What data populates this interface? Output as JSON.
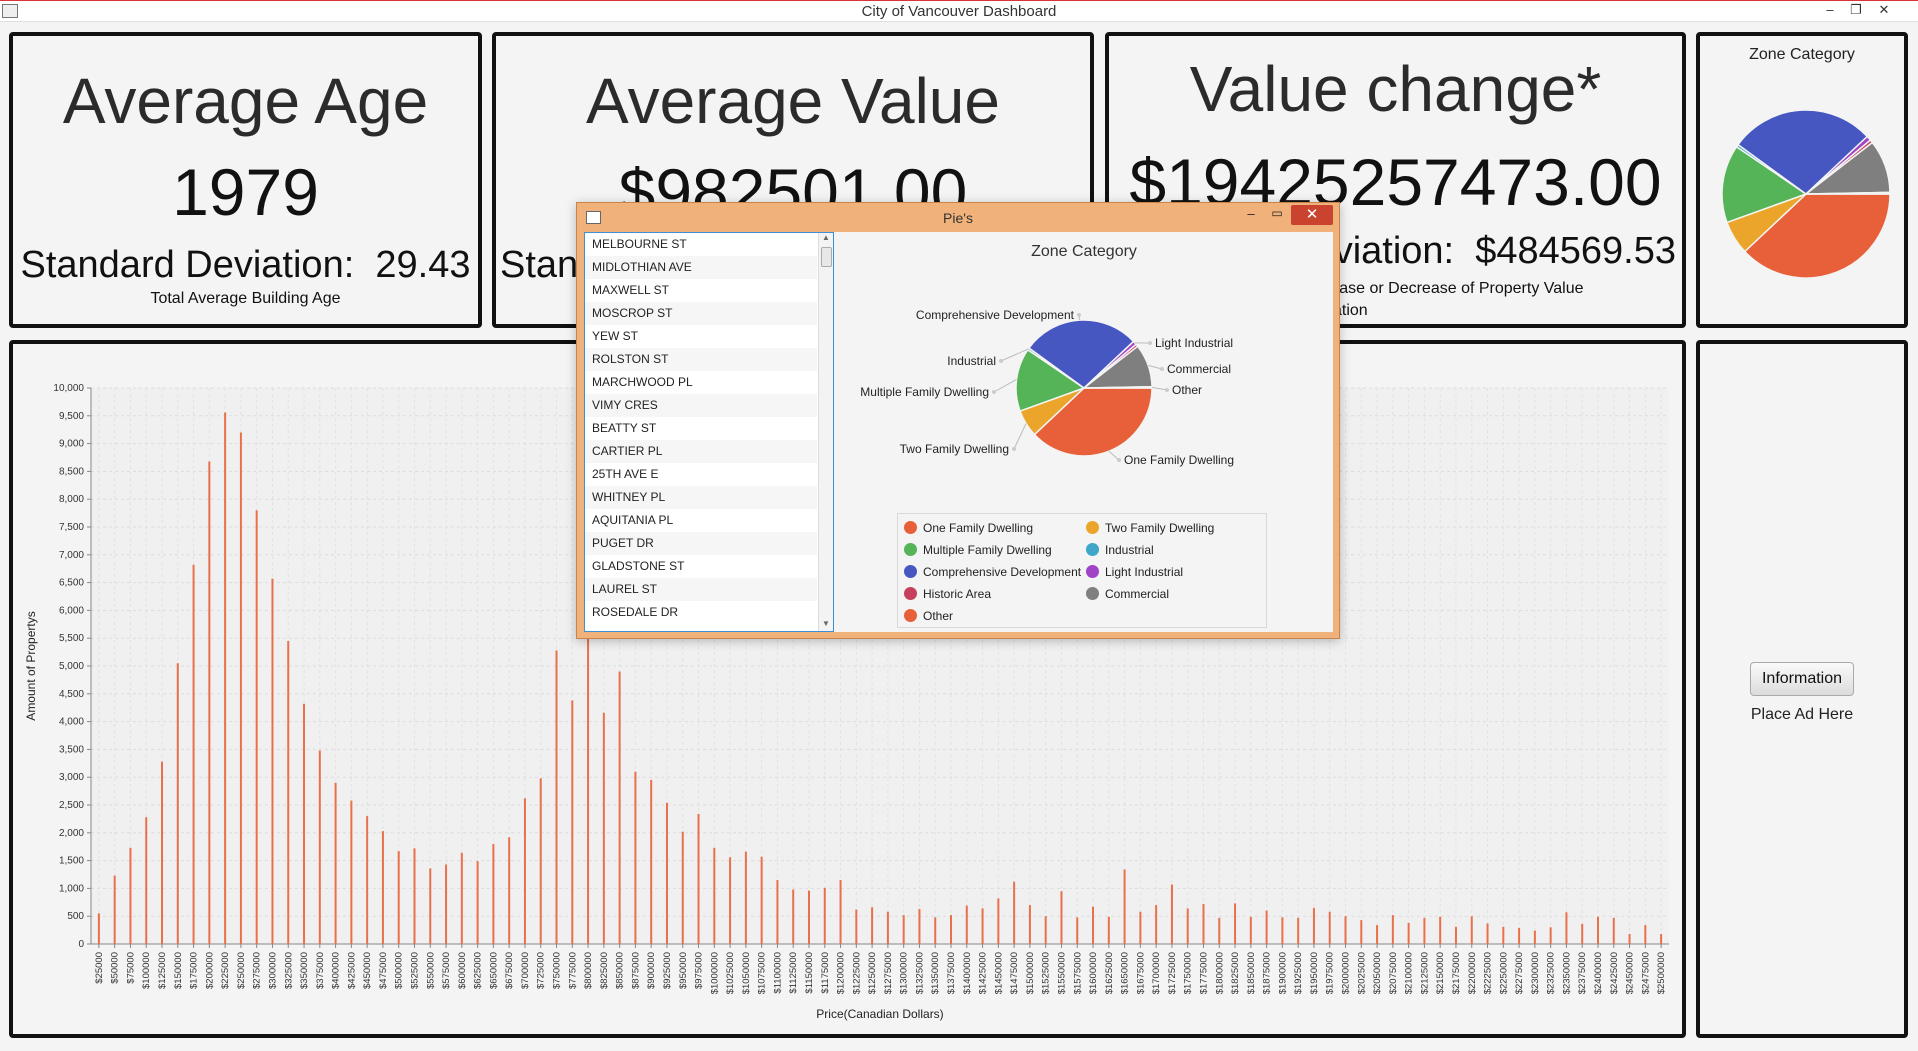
{
  "window": {
    "title": "City of Vancouver Dashboard",
    "minimize": "–",
    "maximize": "❐",
    "close": "✕"
  },
  "age_panel": {
    "title": "Average Age",
    "value": "1979",
    "std_label": "Standard Deviation:",
    "std_value": "29.43",
    "caption": "Total Average Building Age"
  },
  "value_panel": {
    "title": "Average Value",
    "value": "$982501.00",
    "std_label": "Stan"
  },
  "change_panel": {
    "title": "Value change*",
    "value": "$19425257473.00",
    "std_label": "viation:",
    "std_value": "$484569.53",
    "caption_line1": "rease or Decrease of Property Value",
    "caption_line2": "flation"
  },
  "zone_mini": {
    "title": "Zone Category"
  },
  "ad_panel": {
    "button": "Information",
    "text": "Place Ad Here"
  },
  "bar_chart": {
    "xlabel": "Price(Canadian Dollars)",
    "ylabel": "Amount of Propertys",
    "bar_color": "#e8704a"
  },
  "chart_data": [
    {
      "type": "bar",
      "title": "",
      "xlabel": "Price(Canadian Dollars)",
      "ylabel": "Amount of Propertys",
      "ylim": [
        0,
        10000
      ],
      "yticks": [
        "0",
        "500",
        "1,000",
        "1,500",
        "2,000",
        "2,500",
        "3,000",
        "3,500",
        "4,000",
        "4,500",
        "5,000",
        "5,500",
        "6,000",
        "6,500",
        "7,000",
        "7,500",
        "8,000",
        "8,500",
        "9,000",
        "9,500",
        "10,000"
      ],
      "grid": true,
      "categories": [
        "$25000",
        "$50000",
        "$75000",
        "$100000",
        "$125000",
        "$150000",
        "$175000",
        "$200000",
        "$225000",
        "$250000",
        "$275000",
        "$300000",
        "$325000",
        "$350000",
        "$375000",
        "$400000",
        "$425000",
        "$450000",
        "$475000",
        "$500000",
        "$525000",
        "$550000",
        "$575000",
        "$600000",
        "$625000",
        "$650000",
        "$675000",
        "$700000",
        "$725000",
        "$750000",
        "$775000",
        "$800000",
        "$825000",
        "$850000",
        "$875000",
        "$900000",
        "$925000",
        "$950000",
        "$975000",
        "$1000000",
        "$1025000",
        "$1050000",
        "$1075000",
        "$1100000",
        "$1125000",
        "$1150000",
        "$1175000",
        "$1200000",
        "$1225000",
        "$1250000",
        "$1275000",
        "$1300000",
        "$1325000",
        "$1350000",
        "$1375000",
        "$1400000",
        "$1425000",
        "$1450000",
        "$1475000",
        "$1500000",
        "$1525000",
        "$1550000",
        "$1575000",
        "$1600000",
        "$1625000",
        "$1650000",
        "$1675000",
        "$1700000",
        "$1725000",
        "$1750000",
        "$1775000",
        "$1800000",
        "$1825000",
        "$1850000",
        "$1875000",
        "$1900000",
        "$1925000",
        "$1950000",
        "$1975000",
        "$2000000",
        "$2025000",
        "$2050000",
        "$2075000",
        "$2100000",
        "$2125000",
        "$2150000",
        "$2175000",
        "$2200000",
        "$2225000",
        "$2250000",
        "$2275000",
        "$2300000",
        "$2325000",
        "$2350000",
        "$2375000",
        "$2400000",
        "$2425000",
        "$2450000",
        "$2475000",
        "$2500000"
      ],
      "values": [
        550,
        1230,
        1730,
        2280,
        3280,
        5050,
        6820,
        8680,
        9560,
        9200,
        7800,
        6570,
        5450,
        4320,
        3480,
        2900,
        2580,
        2300,
        2030,
        1670,
        1720,
        1360,
        1430,
        1640,
        1490,
        1800,
        1920,
        2620,
        2980,
        5280,
        4380,
        5700,
        4160,
        4900,
        3100,
        2950,
        2540,
        2020,
        2340,
        1730,
        1560,
        1660,
        1570,
        1150,
        980,
        960,
        1010,
        1150,
        620,
        660,
        580,
        520,
        630,
        480,
        520,
        690,
        640,
        820,
        1120,
        700,
        500,
        950,
        480,
        670,
        490,
        1340,
        580,
        700,
        1070,
        640,
        720,
        470,
        730,
        490,
        600,
        480,
        470,
        650,
        580,
        500,
        430,
        340,
        520,
        380,
        470,
        490,
        310,
        500,
        370,
        310,
        290,
        240,
        300,
        570,
        360,
        490,
        470,
        180,
        340,
        180
      ]
    },
    {
      "type": "pie",
      "title": "Zone Category",
      "labels": [
        "One Family Dwelling",
        "Two Family Dwelling",
        "Multiple Family Dwelling",
        "Industrial",
        "Comprehensive Development",
        "Light Industrial",
        "Historic Area",
        "Commercial",
        "Other"
      ],
      "values": [
        38.0,
        6.5,
        15.0,
        0.5,
        28.0,
        0.9,
        0.6,
        10.2,
        0.3
      ],
      "colors": [
        "#e8603a",
        "#eba52b",
        "#56b458",
        "#3da6c9",
        "#4657c1",
        "#a043c7",
        "#c63f5e",
        "#7f7f7f",
        "#e8603a"
      ],
      "legend": "bottom"
    }
  ],
  "dialog": {
    "title": "Pie's",
    "minimize": "–",
    "maximize": "▭",
    "close": "✕",
    "streets": [
      "MELBOURNE ST",
      "MIDLOTHIAN AVE",
      "MAXWELL ST",
      "MOSCROP ST",
      "YEW ST",
      "ROLSTON ST",
      "MARCHWOOD PL",
      "VIMY CRES",
      "BEATTY ST",
      "CARTIER PL",
      "25TH AVE E",
      "WHITNEY PL",
      "AQUITANIA PL",
      "PUGET DR",
      "GLADSTONE ST",
      "LAUREL ST",
      "ROSEDALE DR"
    ],
    "scroll_up": "▲",
    "scroll_down": "▼"
  }
}
